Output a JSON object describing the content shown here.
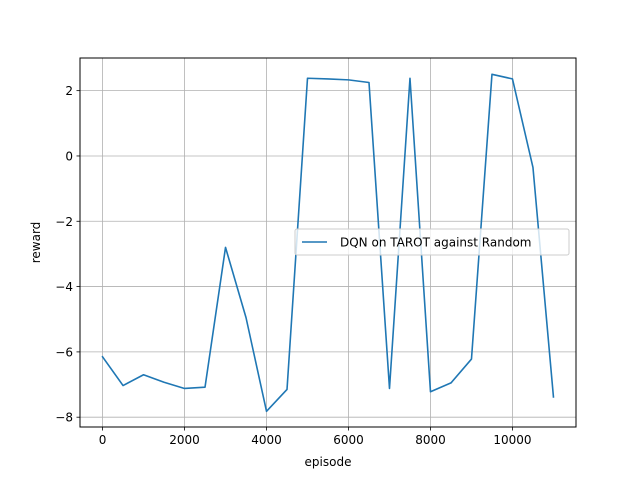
{
  "chart_data": {
    "type": "line",
    "title": "",
    "xlabel": "episode",
    "ylabel": "reward",
    "xlim": [
      -550,
      11550
    ],
    "ylim": [
      -8.3,
      3.0
    ],
    "xticks": [
      0,
      2000,
      4000,
      6000,
      8000,
      10000
    ],
    "xtick_labels": [
      "0",
      "2000",
      "4000",
      "6000",
      "8000",
      "10000"
    ],
    "yticks": [
      -8,
      -6,
      -4,
      -2,
      0,
      2
    ],
    "ytick_labels": [
      "−8",
      "−6",
      "−4",
      "−2",
      "0",
      "2"
    ],
    "grid": true,
    "legend_position": "center-right",
    "series": [
      {
        "name": "DQN on TAROT against Random",
        "color": "#1f77b4",
        "x": [
          0,
          500,
          1000,
          1500,
          2000,
          2500,
          3000,
          3500,
          4000,
          4500,
          5000,
          5500,
          6000,
          6500,
          7000,
          7500,
          8000,
          8500,
          9000,
          9500,
          10000,
          10500,
          11000
        ],
        "y": [
          -6.15,
          -7.03,
          -6.7,
          -6.93,
          -7.12,
          -7.08,
          -2.8,
          -4.95,
          -7.82,
          -7.15,
          2.38,
          2.36,
          2.33,
          2.25,
          -7.12,
          2.38,
          -7.22,
          -6.95,
          -6.22,
          2.5,
          2.36,
          -0.35,
          -7.38
        ]
      }
    ]
  }
}
